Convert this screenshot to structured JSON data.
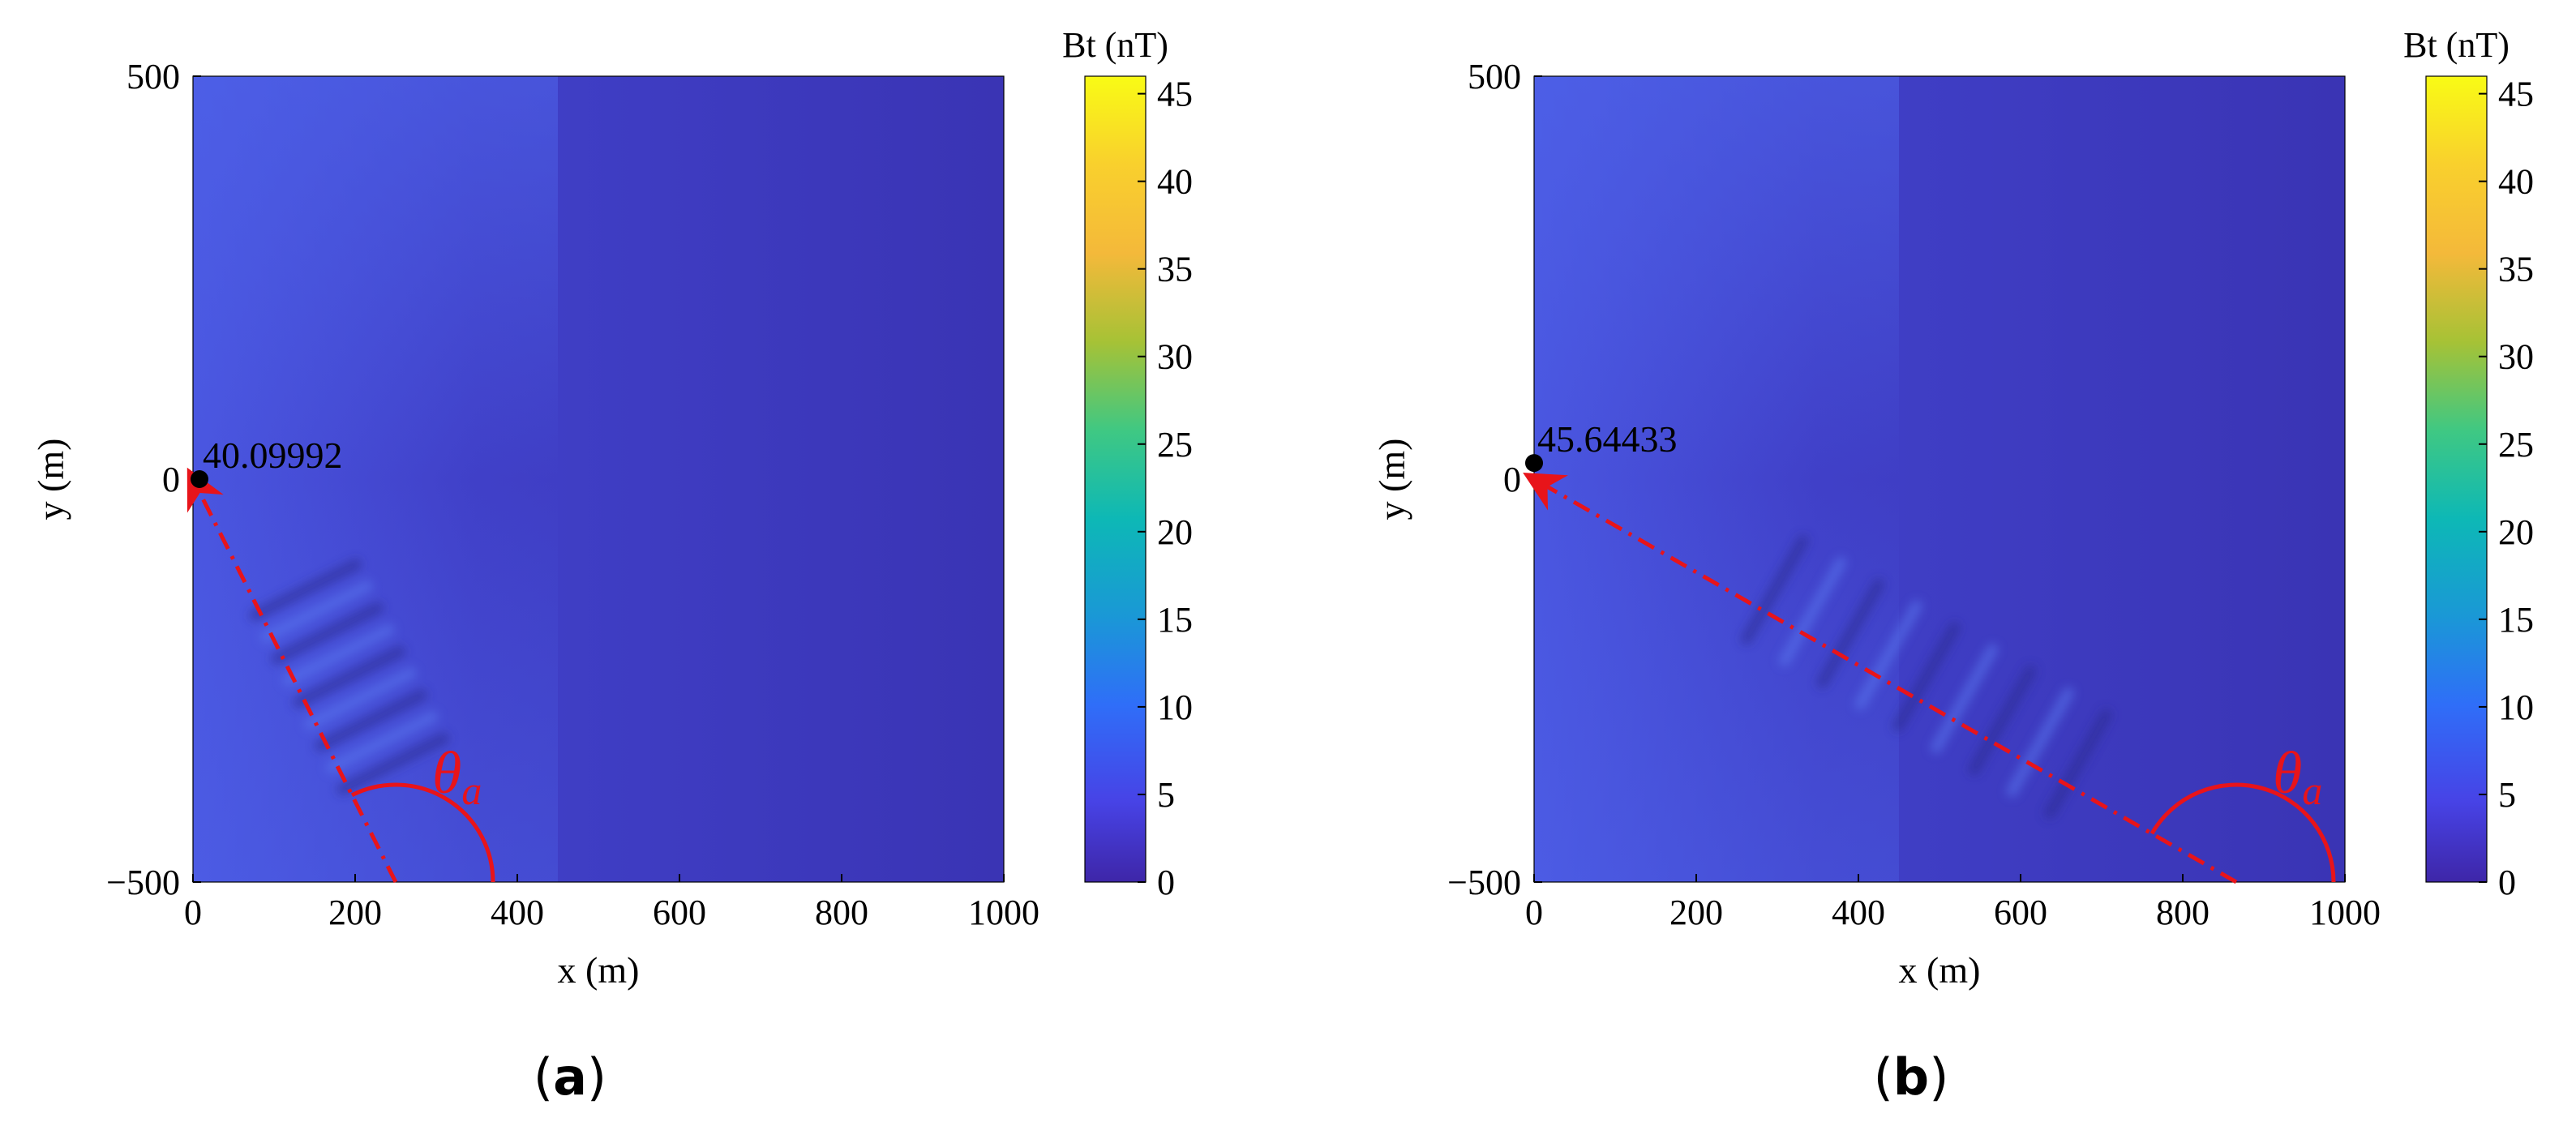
{
  "colors": {
    "arrow": "#e8141a",
    "colormap": [
      "#3e26a8",
      "#4743e6",
      "#2f6ef8",
      "#1a98d6",
      "#0db8b6",
      "#3fc883",
      "#a6c236",
      "#f4b93a",
      "#f9d02d",
      "#f9fb15"
    ]
  },
  "chart_data": [
    {
      "type": "heatmap",
      "panel_label": "(a)",
      "xlabel": "x (m)",
      "ylabel": "y (m)",
      "xlim": [
        0,
        1000
      ],
      "ylim": [
        -500,
        500
      ],
      "x_ticks": [
        "0",
        "200",
        "400",
        "600",
        "800",
        "1000"
      ],
      "y_ticks": [
        "500",
        "0",
        "−500"
      ],
      "colorbar": {
        "title": "Bt (nT)",
        "range": [
          0,
          46
        ],
        "ticks": [
          "45",
          "40",
          "35",
          "30",
          "25",
          "20",
          "15",
          "10",
          "5",
          "0"
        ]
      },
      "peak": {
        "x": 8,
        "y": 0,
        "label": "40.09992"
      },
      "arrow": {
        "from": [
          250,
          -500
        ],
        "to": [
          0,
          0
        ]
      },
      "angle_label": "θ",
      "angle_subscript": "a",
      "field_peak_value": 40.1
    },
    {
      "type": "heatmap",
      "panel_label": "(b)",
      "xlabel": "x (m)",
      "ylabel": "y (m)",
      "xlim": [
        0,
        1000
      ],
      "ylim": [
        -500,
        500
      ],
      "x_ticks": [
        "0",
        "200",
        "400",
        "600",
        "800",
        "1000"
      ],
      "y_ticks": [
        "500",
        "0",
        "−500"
      ],
      "colorbar": {
        "title": "Bt (nT)",
        "range": [
          0,
          46
        ],
        "ticks": [
          "45",
          "40",
          "35",
          "30",
          "25",
          "20",
          "15",
          "10",
          "5",
          "0"
        ]
      },
      "peak": {
        "x": 0,
        "y": 20,
        "label": "45.64433"
      },
      "arrow": {
        "from": [
          866,
          -500
        ],
        "to": [
          0,
          0
        ]
      },
      "angle_label": "θ",
      "angle_subscript": "a",
      "field_peak_value": 45.6
    }
  ]
}
